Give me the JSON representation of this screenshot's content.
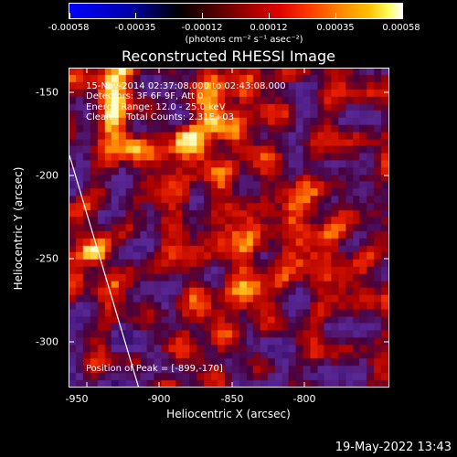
{
  "colorbar": {
    "ticks": [
      "-0.00058",
      "-0.00035",
      "-0.00012",
      "0.00012",
      "0.00035",
      "0.00058"
    ],
    "units": "(photons cm⁻² s⁻¹ asec⁻²)",
    "range": [
      -0.00058,
      0.00058
    ]
  },
  "title": "Reconstructed RHESSI Image",
  "annotations": {
    "time": "15-Nov-2014 02:37:08.000 to 02:43:08.000",
    "detectors": "Detectors: 3F 6F 9F, Att 0",
    "energy": "Energy Range: 12.0 - 25.0 keV",
    "clean": "Clean     Total Counts: 2.31E+03",
    "peak": "Position of Peak = [-899,-170]"
  },
  "x_axis": {
    "title": "Heliocentric X (arcsec)",
    "ticks": [
      "-950",
      "-900",
      "-850",
      "-800"
    ]
  },
  "y_axis": {
    "title": "Heliocentric Y (arcsec)",
    "ticks": [
      "-150",
      "-200",
      "-250",
      "-300"
    ]
  },
  "footer": {
    "timestamp": "19-May-2022 13:43"
  }
}
